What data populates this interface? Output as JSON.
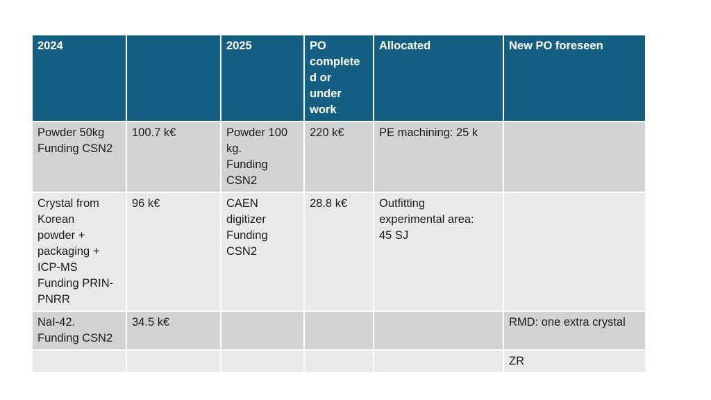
{
  "table": {
    "headers": [
      "2024",
      "",
      "2025",
      "PO complete\nd or\nunder\nwork",
      "Allocated",
      "New PO foreseen"
    ],
    "rows": [
      [
        "Powder 50kg\nFunding CSN2",
        "100.7 k€",
        "Powder 100\nkg.\nFunding\nCSN2",
        "220 k€",
        "PE machining: 25 k",
        ""
      ],
      [
        "Crystal from\nKorean\npowder +\npackaging +\nICP-MS\nFunding PRIN-\nPNRR",
        "96 k€",
        "CAEN\ndigitizer\nFunding\nCSN2",
        "28.8 k€",
        "Outfitting\nexperimental area:\n45 SJ",
        ""
      ],
      [
        "NaI-42.\nFunding CSN2",
        "34.5 k€",
        "",
        "",
        "",
        "RMD: one extra crystal"
      ],
      [
        "",
        "",
        "",
        "",
        "",
        "ZR"
      ]
    ]
  }
}
